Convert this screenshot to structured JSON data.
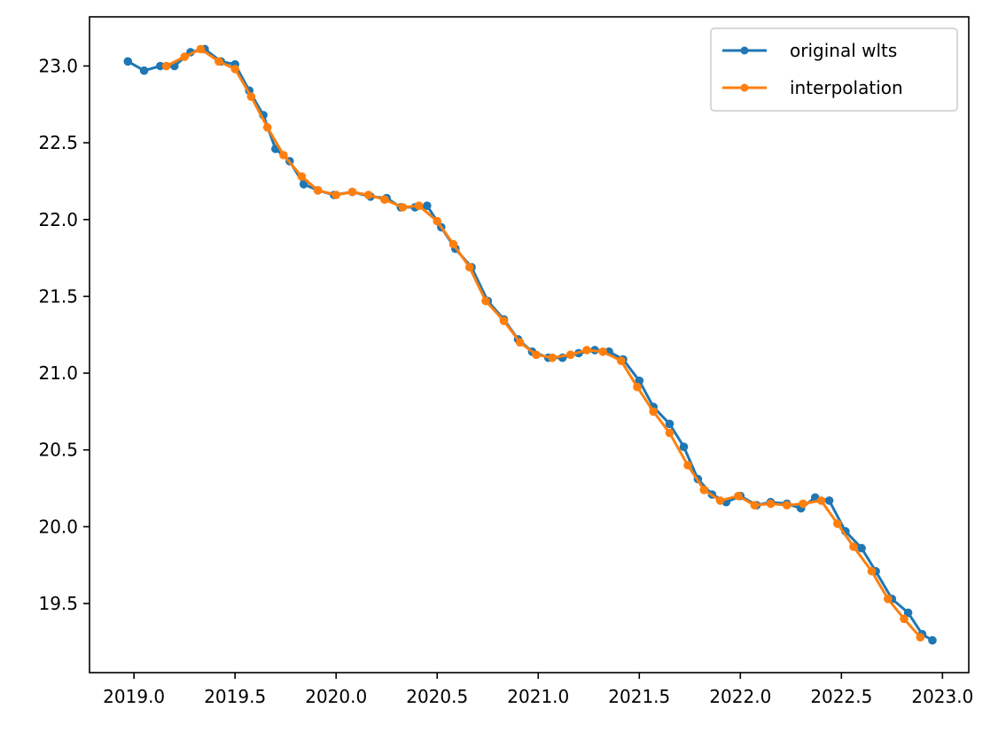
{
  "chart_data": {
    "type": "line",
    "title": "",
    "xlabel": "",
    "ylabel": "",
    "xlim": [
      2018.78,
      2023.13
    ],
    "ylim": [
      19.05,
      23.32
    ],
    "xticks": [
      2019.0,
      2019.5,
      2020.0,
      2020.5,
      2021.0,
      2021.5,
      2022.0,
      2022.5,
      2023.0
    ],
    "xtick_labels": [
      "2019.0",
      "2019.5",
      "2020.0",
      "2020.5",
      "2021.0",
      "2021.5",
      "2022.0",
      "2022.5",
      "2023.0"
    ],
    "yticks": [
      19.5,
      20.0,
      20.5,
      21.0,
      21.5,
      22.0,
      22.5,
      23.0
    ],
    "ytick_labels": [
      "19.5",
      "20.0",
      "20.5",
      "21.0",
      "21.5",
      "22.0",
      "22.5",
      "23.0"
    ],
    "grid": false,
    "legend_position": "top-right",
    "series": [
      {
        "name": "original wlts",
        "color": "#1f77b4",
        "x": [
          2018.97,
          2019.05,
          2019.13,
          2019.2,
          2019.28,
          2019.35,
          2019.43,
          2019.5,
          2019.57,
          2019.64,
          2019.7,
          2019.77,
          2019.84,
          2019.91,
          2019.99,
          2020.08,
          2020.17,
          2020.25,
          2020.32,
          2020.39,
          2020.45,
          2020.52,
          2020.59,
          2020.67,
          2020.75,
          2020.83,
          2020.9,
          2020.97,
          2021.05,
          2021.12,
          2021.2,
          2021.28,
          2021.35,
          2021.42,
          2021.5,
          2021.57,
          2021.65,
          2021.72,
          2021.79,
          2021.86,
          2021.93,
          2022.0,
          2022.08,
          2022.15,
          2022.23,
          2022.3,
          2022.37,
          2022.44,
          2022.52,
          2022.6,
          2022.67,
          2022.75,
          2022.83,
          2022.9,
          2022.95
        ],
        "y": [
          23.03,
          22.97,
          23.0,
          23.0,
          23.09,
          23.11,
          23.03,
          23.01,
          22.84,
          22.68,
          22.46,
          22.38,
          22.23,
          22.19,
          22.16,
          22.18,
          22.15,
          22.14,
          22.08,
          22.08,
          22.09,
          21.95,
          21.81,
          21.69,
          21.47,
          21.35,
          21.22,
          21.14,
          21.1,
          21.1,
          21.13,
          21.15,
          21.14,
          21.09,
          20.95,
          20.78,
          20.67,
          20.52,
          20.31,
          20.21,
          20.16,
          20.2,
          20.14,
          20.16,
          20.15,
          20.12,
          20.19,
          20.17,
          19.97,
          19.86,
          19.71,
          19.53,
          19.44,
          19.3,
          19.26
        ]
      },
      {
        "name": "interpolation",
        "color": "#ff7f0e",
        "x": [
          2019.16,
          2019.25,
          2019.33,
          2019.42,
          2019.5,
          2019.58,
          2019.66,
          2019.74,
          2019.83,
          2019.91,
          2020.0,
          2020.08,
          2020.16,
          2020.24,
          2020.33,
          2020.41,
          2020.5,
          2020.58,
          2020.66,
          2020.74,
          2020.83,
          2020.91,
          2020.99,
          2021.07,
          2021.16,
          2021.24,
          2021.32,
          2021.41,
          2021.49,
          2021.57,
          2021.65,
          2021.74,
          2021.82,
          2021.9,
          2021.99,
          2022.07,
          2022.15,
          2022.23,
          2022.31,
          2022.4,
          2022.48,
          2022.56,
          2022.65,
          2022.73,
          2022.81,
          2022.89
        ],
        "y": [
          23.0,
          23.06,
          23.11,
          23.03,
          22.98,
          22.8,
          22.6,
          22.42,
          22.28,
          22.19,
          22.16,
          22.18,
          22.16,
          22.13,
          22.08,
          22.09,
          21.99,
          21.84,
          21.69,
          21.47,
          21.34,
          21.2,
          21.12,
          21.1,
          21.12,
          21.15,
          21.14,
          21.08,
          20.91,
          20.75,
          20.61,
          20.4,
          20.24,
          20.17,
          20.2,
          20.14,
          20.15,
          20.14,
          20.15,
          20.17,
          20.02,
          19.87,
          19.71,
          19.53,
          19.4,
          19.28
        ]
      }
    ]
  }
}
